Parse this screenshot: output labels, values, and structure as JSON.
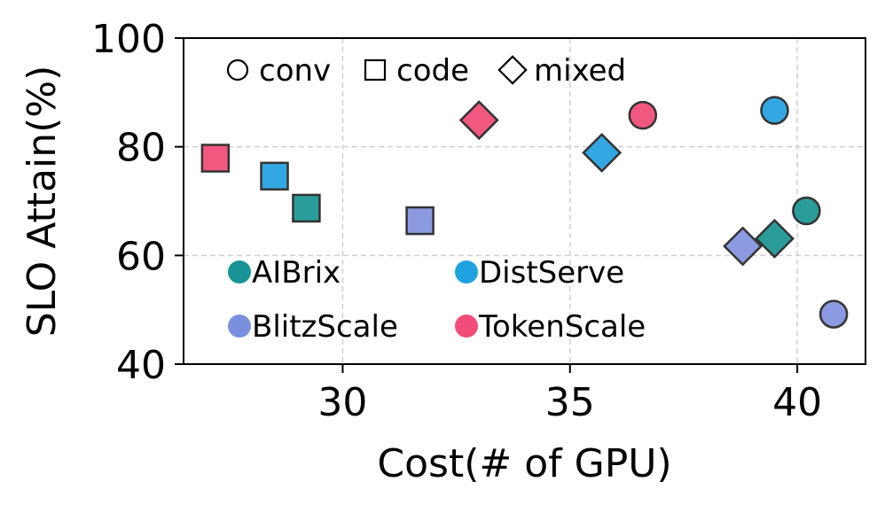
{
  "chart_data": {
    "type": "scatter",
    "xlabel": "Cost(# of GPU)",
    "ylabel": "SLO Attain(%)",
    "xlim": [
      26.5,
      41.5
    ],
    "ylim": [
      40,
      100
    ],
    "xticks": [
      "30",
      "35",
      "40"
    ],
    "yticks": [
      "40",
      "60",
      "80",
      "100"
    ],
    "grid": true,
    "marker_legend": {
      "placement": "top-left",
      "entries": [
        {
          "label": "conv",
          "shape": "circle"
        },
        {
          "label": "code",
          "shape": "square"
        },
        {
          "label": "mixed",
          "shape": "diamond"
        }
      ]
    },
    "color_legend": {
      "placement": "lower-left",
      "entries": [
        {
          "label": "AIBrix",
          "color": "#199395"
        },
        {
          "label": "DistServe",
          "color": "#1ea2e0"
        },
        {
          "label": "BlitzScale",
          "color": "#7b8fdf"
        },
        {
          "label": "TokenScale",
          "color": "#f24c79"
        }
      ]
    },
    "series": [
      {
        "name": "AIBrix",
        "color": "#2a9d9b",
        "points": [
          {
            "x": 40.2,
            "y": 68.2,
            "marker": "circle"
          },
          {
            "x": 29.2,
            "y": 68.7,
            "marker": "square"
          },
          {
            "x": 39.5,
            "y": 63.1,
            "marker": "diamond"
          }
        ]
      },
      {
        "name": "DistServe",
        "color": "#33a7e2",
        "points": [
          {
            "x": 39.5,
            "y": 86.7,
            "marker": "circle"
          },
          {
            "x": 28.5,
            "y": 74.6,
            "marker": "square"
          },
          {
            "x": 35.7,
            "y": 78.9,
            "marker": "diamond"
          }
        ]
      },
      {
        "name": "BlitzScale",
        "color": "#8b9ae0",
        "points": [
          {
            "x": 40.8,
            "y": 49.2,
            "marker": "circle"
          },
          {
            "x": 31.7,
            "y": 66.4,
            "marker": "square"
          },
          {
            "x": 38.8,
            "y": 61.7,
            "marker": "diamond"
          }
        ]
      },
      {
        "name": "TokenScale",
        "color": "#f2577f",
        "points": [
          {
            "x": 36.6,
            "y": 85.8,
            "marker": "circle"
          },
          {
            "x": 27.2,
            "y": 77.9,
            "marker": "square"
          },
          {
            "x": 33.0,
            "y": 84.9,
            "marker": "diamond"
          }
        ]
      }
    ]
  }
}
